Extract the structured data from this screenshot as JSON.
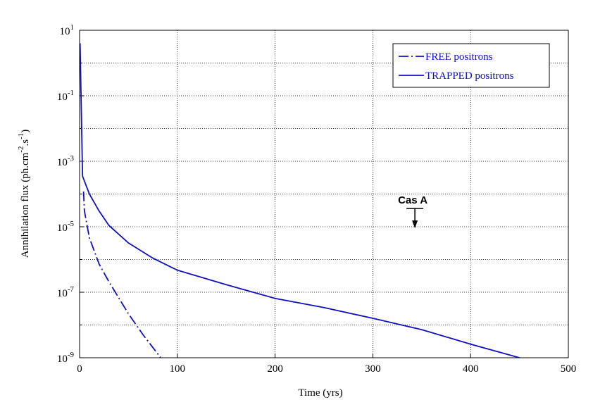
{
  "chart_data": {
    "type": "line",
    "xlabel": "Time (yrs)",
    "ylabel": "Annihilation flux (ph.cm^-2.s^-1)",
    "xlim": [
      0,
      500
    ],
    "xticks": [
      0,
      100,
      200,
      300,
      400,
      500
    ],
    "ylim": [
      1e-09,
      10
    ],
    "log_y": true,
    "yticks": [
      {
        "value": 10,
        "label": "10^1"
      },
      {
        "value": 0.1,
        "label": "10^-1"
      },
      {
        "value": 0.001,
        "label": "10^-3"
      },
      {
        "value": 1e-05,
        "label": "10^-5"
      },
      {
        "value": 1e-07,
        "label": "10^-7"
      },
      {
        "value": 1e-09,
        "label": "10^-9"
      }
    ],
    "ygrid_minor": [
      1,
      0.01,
      0.0001,
      1e-06,
      1e-08
    ],
    "grid": true,
    "legend": "upper right",
    "series": [
      {
        "name": "FREE positrons",
        "color": "#1010c0",
        "linestyle": "dashdot",
        "x": [
          4,
          5,
          10,
          20,
          30,
          50,
          65,
          83
        ],
        "values": [
          0.00012,
          3e-05,
          4.6e-06,
          7.2e-07,
          2.1e-07,
          2.2e-08,
          5e-09,
          1e-09
        ]
      },
      {
        "name": "TRAPPED positrons",
        "color": "#1010c0",
        "linestyle": "solid",
        "x": [
          0.5,
          3,
          10,
          20,
          30,
          50,
          75,
          100,
          150,
          200,
          250,
          300,
          350,
          400,
          450
        ],
        "values": [
          4,
          0.00035,
          0.0001,
          3e-05,
          1.1e-05,
          3.2e-06,
          1.1e-06,
          4.7e-07,
          1.7e-07,
          6.5e-08,
          3.4e-08,
          1.6e-08,
          7.2e-09,
          2.6e-09,
          1e-09
        ]
      }
    ],
    "annotations": [
      {
        "text": "Cas A",
        "x": 343,
        "y": 3.6e-05
      }
    ]
  }
}
